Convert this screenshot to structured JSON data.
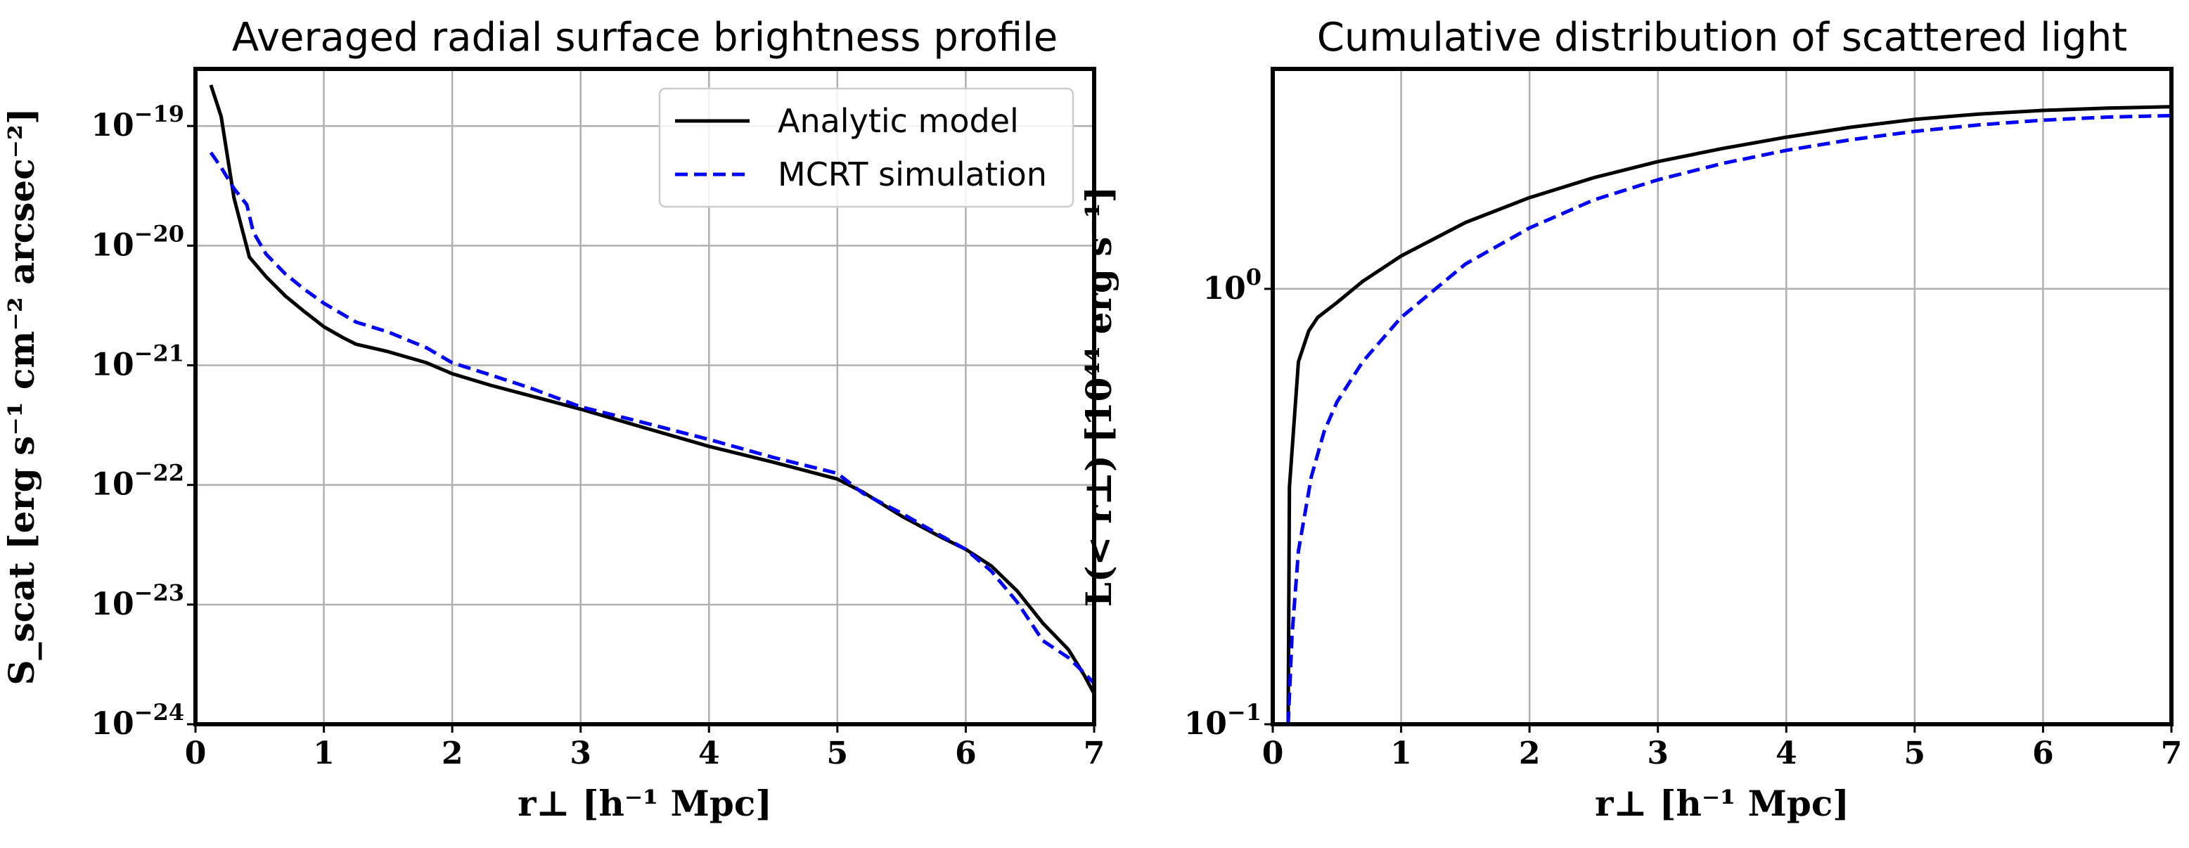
{
  "chart_data": [
    {
      "type": "line",
      "title": "Averaged radial surface brightness profile",
      "xlabel": "r⊥ [h⁻¹ Mpc]",
      "ylabel": "S_scat [erg s⁻¹ cm⁻² arcsec⁻²]",
      "xlim": [
        0,
        7
      ],
      "ylim": [
        1e-24,
        3e-19
      ],
      "yscale": "log",
      "grid": true,
      "legend_position": "top-right",
      "x_ticks": [
        "0",
        "1",
        "2",
        "3",
        "4",
        "5",
        "6",
        "7"
      ],
      "y_ticks": [
        {
          "value": 1e-24,
          "label": "10",
          "exp": "−24"
        },
        {
          "value": 1e-23,
          "label": "10",
          "exp": "−23"
        },
        {
          "value": 1e-22,
          "label": "10",
          "exp": "−22"
        },
        {
          "value": 1e-21,
          "label": "10",
          "exp": "−21"
        },
        {
          "value": 1e-20,
          "label": "10",
          "exp": "−20"
        },
        {
          "value": 1e-19,
          "label": "10",
          "exp": "−19"
        }
      ],
      "series": [
        {
          "name": "Analytic model",
          "color": "#000000",
          "dash": "solid",
          "x": [
            0.12,
            0.2,
            0.3,
            0.42,
            0.55,
            0.7,
            0.85,
            1.0,
            1.15,
            1.25,
            1.5,
            1.8,
            2.0,
            2.3,
            2.6,
            3.0,
            3.5,
            4.0,
            4.5,
            5.0,
            5.2,
            5.5,
            5.8,
            6.0,
            6.2,
            6.4,
            6.6,
            6.8,
            6.92,
            7.0
          ],
          "y": [
            2.2e-19,
            1.2e-19,
            2.5e-20,
            8e-21,
            5.5e-21,
            3.8e-21,
            2.8e-21,
            2.1e-21,
            1.7e-21,
            1.5e-21,
            1.3e-21,
            1.05e-21,
            8.5e-22,
            6.8e-22,
            5.6e-22,
            4.3e-22,
            3e-22,
            2.1e-22,
            1.55e-22,
            1.12e-22,
            8.7e-23,
            5.5e-23,
            3.7e-23,
            2.9e-23,
            2.1e-23,
            1.3e-23,
            7e-24,
            4.2e-24,
            2.6e-24,
            1.8e-24
          ]
        },
        {
          "name": "MCRT simulation",
          "color": "#0000ff",
          "dash": "dashed",
          "x": [
            0.12,
            0.2,
            0.3,
            0.4,
            0.45,
            0.55,
            0.7,
            0.85,
            1.0,
            1.25,
            1.5,
            1.8,
            2.0,
            2.3,
            2.6,
            3.0,
            3.5,
            4.0,
            4.5,
            5.0,
            5.2,
            5.5,
            5.8,
            6.0,
            6.2,
            6.4,
            6.6,
            6.8,
            6.92,
            7.0
          ],
          "y": [
            6e-20,
            4.5e-20,
            3e-20,
            2.2e-20,
            1.3e-20,
            8.5e-21,
            5.8e-21,
            4.3e-21,
            3.3e-21,
            2.3e-21,
            1.9e-21,
            1.4e-21,
            1.05e-21,
            8.3e-22,
            6.5e-22,
            4.5e-22,
            3.3e-22,
            2.4e-22,
            1.7e-22,
            1.25e-22,
            8.5e-23,
            5.8e-23,
            3.8e-23,
            2.9e-23,
            1.9e-23,
            1.05e-23,
            5e-24,
            3.6e-24,
            2.7e-24,
            2.2e-24
          ]
        }
      ]
    },
    {
      "type": "line",
      "title": "Cumulative distribution of scattered light",
      "xlabel": "r⊥ [h⁻¹ Mpc]",
      "ylabel": "L(< r⊥) [10⁴⁴ erg s⁻¹]",
      "xlim": [
        0,
        7
      ],
      "ylim": [
        0.1,
        3.2
      ],
      "yscale": "log",
      "grid": true,
      "x_ticks": [
        "0",
        "1",
        "2",
        "3",
        "4",
        "5",
        "6",
        "7"
      ],
      "y_ticks": [
        {
          "value": 0.1,
          "label": "10",
          "exp": "−1"
        },
        {
          "value": 1,
          "label": "10",
          "exp": "0"
        }
      ],
      "series": [
        {
          "name": "Analytic model",
          "color": "#000000",
          "dash": "solid",
          "x": [
            0.12,
            0.13,
            0.2,
            0.28,
            0.35,
            0.5,
            0.7,
            1.0,
            1.5,
            2.0,
            2.5,
            3.0,
            3.5,
            4.0,
            4.5,
            5.0,
            5.5,
            6.0,
            6.5,
            7.0
          ],
          "y": [
            0.1,
            0.35,
            0.68,
            0.8,
            0.86,
            0.93,
            1.04,
            1.19,
            1.42,
            1.62,
            1.8,
            1.96,
            2.1,
            2.23,
            2.35,
            2.45,
            2.52,
            2.57,
            2.6,
            2.62
          ]
        },
        {
          "name": "MCRT simulation",
          "color": "#0000ff",
          "dash": "dashed",
          "x": [
            0.12,
            0.15,
            0.2,
            0.3,
            0.4,
            0.5,
            0.7,
            1.0,
            1.5,
            2.0,
            2.5,
            3.0,
            3.5,
            4.0,
            4.5,
            5.0,
            5.5,
            6.0,
            6.5,
            7.0
          ],
          "y": [
            0.1,
            0.16,
            0.25,
            0.37,
            0.47,
            0.55,
            0.68,
            0.86,
            1.14,
            1.38,
            1.6,
            1.78,
            1.94,
            2.08,
            2.2,
            2.3,
            2.38,
            2.44,
            2.48,
            2.5
          ]
        }
      ]
    }
  ]
}
